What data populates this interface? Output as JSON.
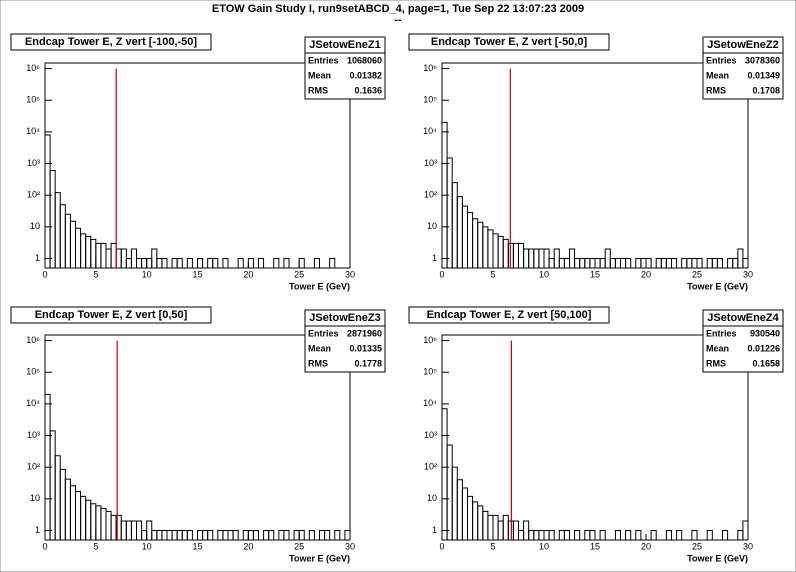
{
  "header": {
    "title": "ETOW Gain Study I, run9setABCD_4, page=1,  Tue Sep 22 13:07:23 2009",
    "subtitle": "--"
  },
  "chart_data": [
    {
      "type": "histogram",
      "title": "Endcap Tower E, Z vert [-100,-50]",
      "xlabel": "Tower E (GeV)",
      "color": "#000000",
      "log_y": true,
      "stats": {
        "name": "JSetowEneZ1",
        "rows": [
          {
            "label": "Entries",
            "value": 1068060
          },
          {
            "label": "Mean",
            "value": 0.01382
          },
          {
            "label": "RMS",
            "value": 0.1636
          }
        ]
      },
      "marker_x": 7.0,
      "marker_color": "#cc0000",
      "bins": [
        0,
        0.5,
        1,
        1.5,
        2,
        2.5,
        3,
        3.5,
        4,
        4.5,
        5,
        5.5,
        6,
        6.5,
        7,
        7.5,
        8,
        8.5,
        9,
        9.5,
        10,
        10.5,
        11,
        11.5,
        12,
        12.5,
        13,
        13.5,
        14,
        14.5,
        15,
        15.5,
        16,
        16.5,
        17,
        17.5,
        18,
        18.5,
        19,
        19.5,
        20,
        20.5,
        21,
        21.5,
        22,
        22.5,
        23,
        23.5,
        24,
        24.5,
        25,
        25.5,
        26,
        26.5,
        27,
        27.5,
        28,
        28.5,
        29,
        29.5,
        30
      ],
      "values": [
        8000,
        600,
        120,
        50,
        25,
        15,
        9,
        6,
        5,
        4,
        3,
        3,
        2,
        3,
        2,
        2,
        1,
        2,
        1,
        1,
        1,
        2,
        1,
        1,
        0,
        1,
        1,
        0,
        1,
        0,
        1,
        0,
        1,
        1,
        0,
        1,
        0,
        0,
        1,
        0,
        1,
        0,
        1,
        0,
        0,
        1,
        0,
        1,
        0,
        0,
        1,
        0,
        0,
        1,
        0,
        0,
        1,
        0,
        0,
        0
      ],
      "xlim": [
        0,
        30
      ],
      "xticks": [
        0,
        5,
        10,
        15,
        20,
        25,
        30
      ],
      "ylim": [
        0.5,
        1500000
      ],
      "yticks": [
        1,
        10,
        {
          "value": 100,
          "label": "10²"
        },
        {
          "value": 1000,
          "label": "10³"
        },
        {
          "value": 10000,
          "label": "10⁴"
        },
        {
          "value": 100000,
          "label": "10⁵"
        },
        {
          "value": 1000000,
          "label": "10⁶"
        }
      ]
    },
    {
      "type": "histogram",
      "title": "Endcap Tower E, Z vert [-50,0]",
      "xlabel": "Tower E (GeV)",
      "color": "#000000",
      "log_y": true,
      "stats": {
        "name": "JSetowEneZ2",
        "rows": [
          {
            "label": "Entries",
            "value": 3078360
          },
          {
            "label": "Mean",
            "value": 0.01349
          },
          {
            "label": "RMS",
            "value": 0.1708
          }
        ]
      },
      "marker_x": 6.7,
      "marker_color": "#cc0000",
      "bins": [
        0,
        0.5,
        1,
        1.5,
        2,
        2.5,
        3,
        3.5,
        4,
        4.5,
        5,
        5.5,
        6,
        6.5,
        7,
        7.5,
        8,
        8.5,
        9,
        9.5,
        10,
        10.5,
        11,
        11.5,
        12,
        12.5,
        13,
        13.5,
        14,
        14.5,
        15,
        15.5,
        16,
        16.5,
        17,
        17.5,
        18,
        18.5,
        19,
        19.5,
        20,
        20.5,
        21,
        21.5,
        22,
        22.5,
        23,
        23.5,
        24,
        24.5,
        25,
        25.5,
        26,
        26.5,
        27,
        27.5,
        28,
        28.5,
        29,
        29.5,
        30
      ],
      "values": [
        20000,
        1500,
        250,
        90,
        45,
        28,
        18,
        14,
        10,
        8,
        6,
        5,
        4,
        3,
        3,
        3,
        2,
        2,
        2,
        2,
        2,
        1,
        2,
        1,
        1,
        2,
        1,
        1,
        1,
        1,
        1,
        1,
        2,
        1,
        1,
        1,
        1,
        0,
        1,
        1,
        1,
        0,
        1,
        1,
        1,
        1,
        0,
        1,
        1,
        1,
        1,
        0,
        1,
        1,
        1,
        0,
        1,
        1,
        2,
        1
      ],
      "xlim": [
        0,
        30
      ],
      "xticks": [
        0,
        5,
        10,
        15,
        20,
        25,
        30
      ],
      "ylim": [
        0.5,
        1500000
      ],
      "yticks": [
        1,
        10,
        {
          "value": 100,
          "label": "10²"
        },
        {
          "value": 1000,
          "label": "10³"
        },
        {
          "value": 10000,
          "label": "10⁴"
        },
        {
          "value": 100000,
          "label": "10⁵"
        },
        {
          "value": 1000000,
          "label": "10⁶"
        }
      ]
    },
    {
      "type": "histogram",
      "title": "Endcap Tower E, Z vert [0,50]",
      "xlabel": "Tower E (GeV)",
      "color": "#000000",
      "log_y": true,
      "stats": {
        "name": "JSetowEneZ3",
        "rows": [
          {
            "label": "Entries",
            "value": 2871960
          },
          {
            "label": "Mean",
            "value": 0.01335
          },
          {
            "label": "RMS",
            "value": 0.1778
          }
        ]
      },
      "marker_x": 7.1,
      "marker_color": "#cc0000",
      "bins": [
        0,
        0.5,
        1,
        1.5,
        2,
        2.5,
        3,
        3.5,
        4,
        4.5,
        5,
        5.5,
        6,
        6.5,
        7,
        7.5,
        8,
        8.5,
        9,
        9.5,
        10,
        10.5,
        11,
        11.5,
        12,
        12.5,
        13,
        13.5,
        14,
        14.5,
        15,
        15.5,
        16,
        16.5,
        17,
        17.5,
        18,
        18.5,
        19,
        19.5,
        20,
        20.5,
        21,
        21.5,
        22,
        22.5,
        23,
        23.5,
        24,
        24.5,
        25,
        25.5,
        26,
        26.5,
        27,
        27.5,
        28,
        28.5,
        29,
        29.5,
        30
      ],
      "values": [
        20000,
        1400,
        230,
        85,
        42,
        26,
        17,
        12,
        9,
        7,
        6,
        5,
        4,
        3,
        3,
        2,
        2,
        2,
        2,
        1,
        2,
        1,
        1,
        1,
        1,
        1,
        1,
        1,
        1,
        0,
        1,
        1,
        1,
        0,
        1,
        1,
        1,
        1,
        0,
        1,
        1,
        1,
        0,
        1,
        1,
        0,
        1,
        1,
        0,
        1,
        1,
        0,
        1,
        0,
        1,
        1,
        0,
        1,
        0,
        1
      ],
      "xlim": [
        0,
        30
      ],
      "xticks": [
        0,
        5,
        10,
        15,
        20,
        25,
        30
      ],
      "ylim": [
        0.5,
        1500000
      ],
      "yticks": [
        1,
        10,
        {
          "value": 100,
          "label": "10²"
        },
        {
          "value": 1000,
          "label": "10³"
        },
        {
          "value": 10000,
          "label": "10⁴"
        },
        {
          "value": 100000,
          "label": "10⁵"
        },
        {
          "value": 1000000,
          "label": "10⁶"
        }
      ]
    },
    {
      "type": "histogram",
      "title": "Endcap Tower E, Z vert [50,100]",
      "xlabel": "Tower E (GeV)",
      "color": "#000000",
      "log_y": true,
      "stats": {
        "name": "JSetowEneZ4",
        "rows": [
          {
            "label": "Entries",
            "value": 930540
          },
          {
            "label": "Mean",
            "value": 0.01226
          },
          {
            "label": "RMS",
            "value": 0.1658
          }
        ]
      },
      "marker_x": 6.8,
      "marker_color": "#cc0000",
      "bins": [
        0,
        0.5,
        1,
        1.5,
        2,
        2.5,
        3,
        3.5,
        4,
        4.5,
        5,
        5.5,
        6,
        6.5,
        7,
        7.5,
        8,
        8.5,
        9,
        9.5,
        10,
        10.5,
        11,
        11.5,
        12,
        12.5,
        13,
        13.5,
        14,
        14.5,
        15,
        15.5,
        16,
        16.5,
        17,
        17.5,
        18,
        18.5,
        19,
        19.5,
        20,
        20.5,
        21,
        21.5,
        22,
        22.5,
        23,
        23.5,
        24,
        24.5,
        25,
        25.5,
        26,
        26.5,
        27,
        27.5,
        28,
        28.5,
        29,
        29.5,
        30
      ],
      "values": [
        7000,
        500,
        100,
        40,
        22,
        12,
        8,
        6,
        4,
        3,
        3,
        2,
        3,
        2,
        2,
        1,
        2,
        1,
        1,
        1,
        1,
        1,
        0,
        1,
        1,
        0,
        1,
        0,
        1,
        1,
        0,
        1,
        0,
        0,
        1,
        0,
        1,
        0,
        1,
        0,
        0,
        1,
        0,
        0,
        1,
        0,
        1,
        0,
        0,
        1,
        0,
        0,
        1,
        0,
        0,
        1,
        0,
        0,
        1,
        2
      ],
      "xlim": [
        0,
        30
      ],
      "xticks": [
        0,
        5,
        10,
        15,
        20,
        25,
        30
      ],
      "ylim": [
        0.5,
        1500000
      ],
      "yticks": [
        1,
        10,
        {
          "value": 100,
          "label": "10²"
        },
        {
          "value": 1000,
          "label": "10³"
        },
        {
          "value": 10000,
          "label": "10⁴"
        },
        {
          "value": 100000,
          "label": "10⁵"
        },
        {
          "value": 1000000,
          "label": "10⁶"
        }
      ]
    }
  ]
}
